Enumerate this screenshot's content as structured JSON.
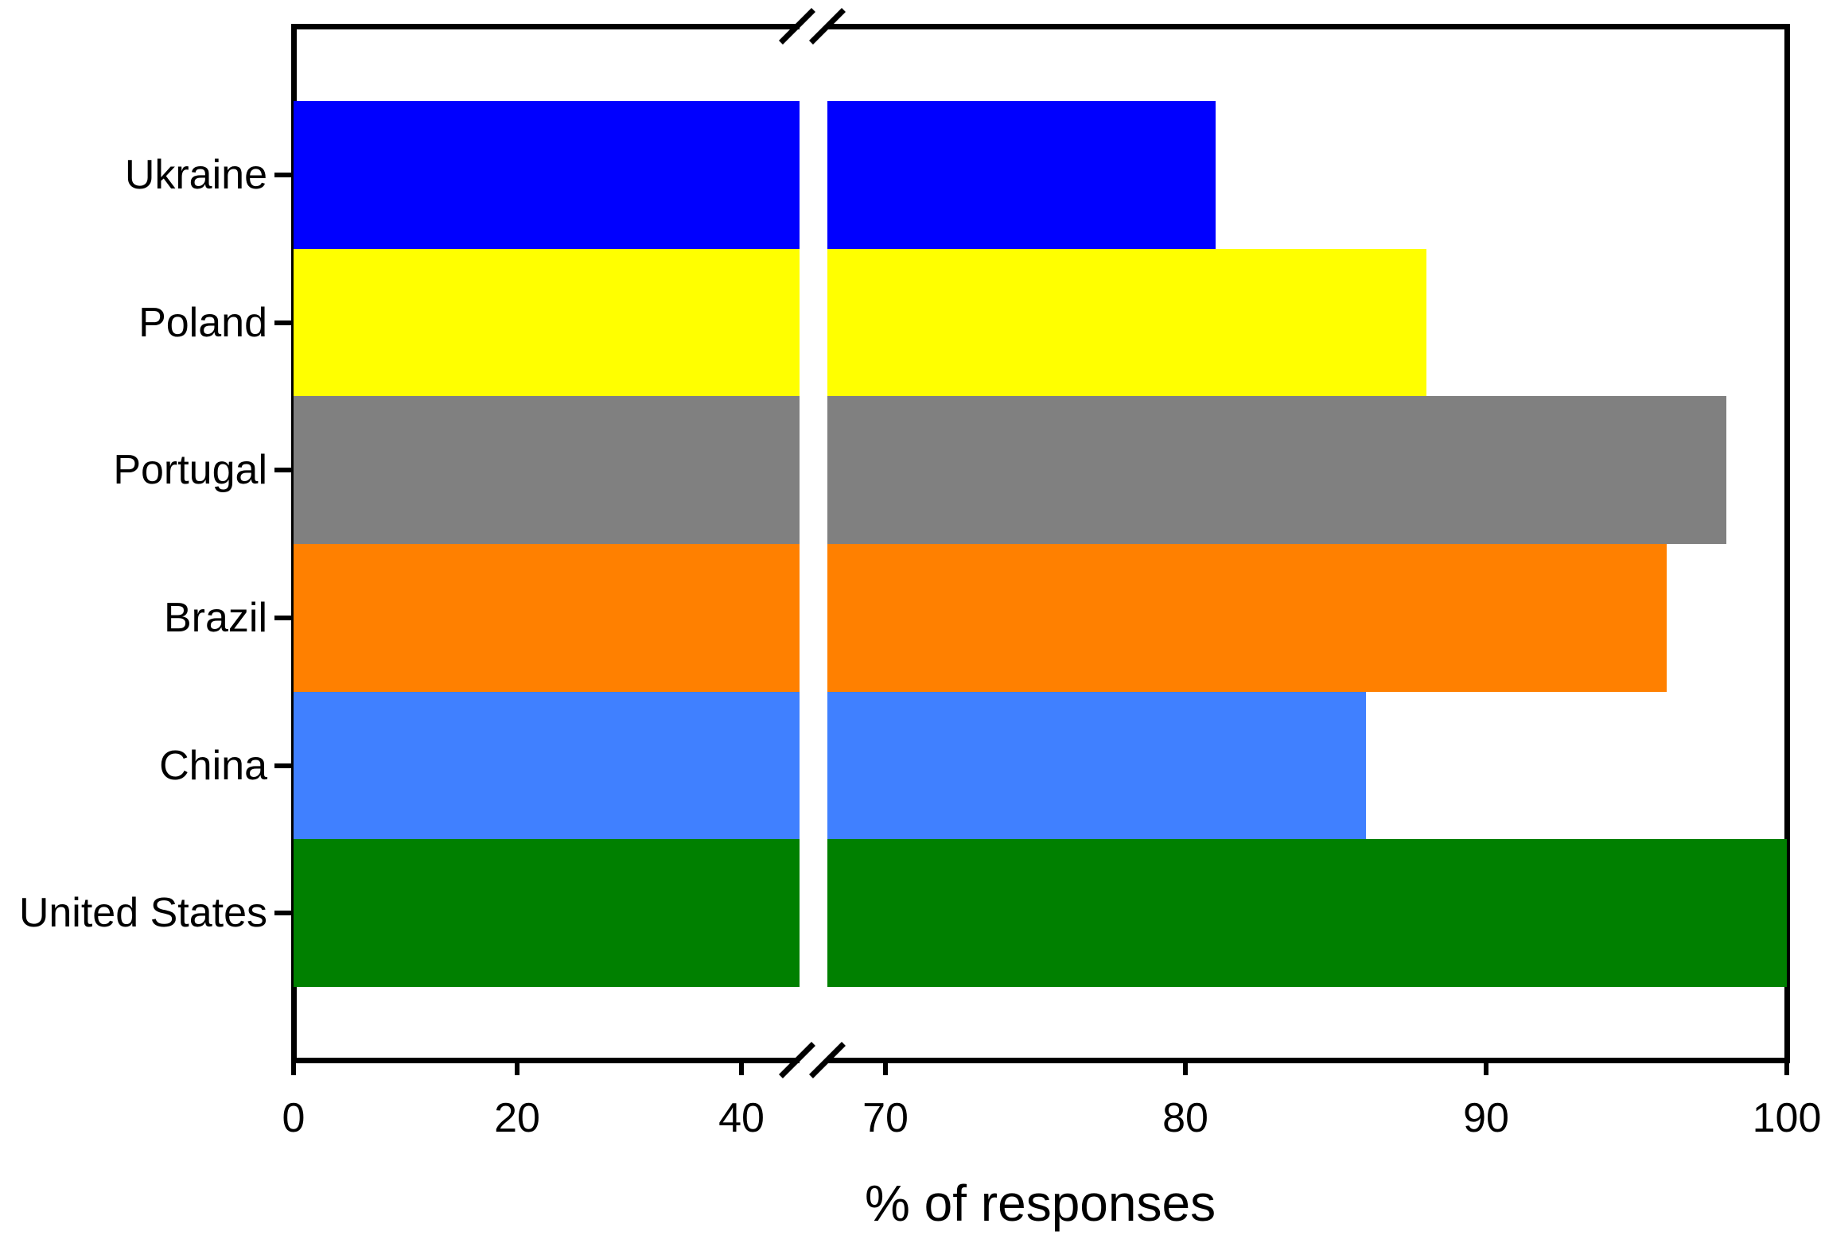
{
  "chart_data": {
    "type": "bar",
    "orientation": "horizontal",
    "title": "",
    "xlabel": "% of responses",
    "categories": [
      "Ukraine",
      "Poland",
      "Portugal",
      "Brazil",
      "China",
      "United States"
    ],
    "series": [
      {
        "name": "% of responses",
        "values": [
          81,
          88,
          98,
          96,
          86,
          100
        ]
      }
    ],
    "bar_colors": [
      "#0000ff",
      "#ffff00",
      "#808080",
      "#ff8000",
      "#4080ff",
      "#008000"
    ],
    "x_axis": {
      "has_break": true,
      "left_segment_range": [
        0,
        45
      ],
      "right_segment_range": [
        68,
        100
      ],
      "ticks_left": [
        0,
        20,
        40
      ],
      "ticks_right": [
        70,
        80,
        90,
        100
      ]
    },
    "grid": false,
    "legend": false,
    "background_color": "#ffffff",
    "axis_color": "#000000"
  }
}
